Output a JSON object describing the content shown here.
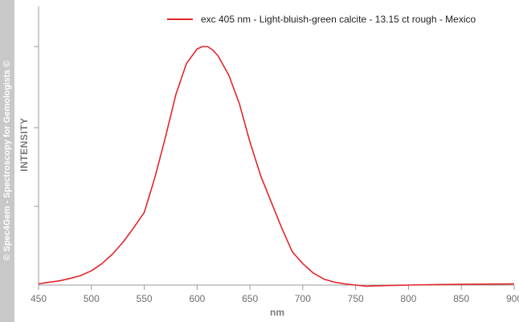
{
  "watermark": "© Spec4Gem - Spectroscopy for Gemologists ©",
  "colors": {
    "series": "#e0262a",
    "axis": "#9a9a9a",
    "band": "#c8c8c8"
  },
  "chart_data": {
    "type": "line",
    "title": "",
    "xlabel": "nm",
    "ylabel": "INTENSITY",
    "xlim": [
      450,
      900
    ],
    "ylim": [
      0,
      1
    ],
    "xticks": [
      450,
      500,
      550,
      600,
      650,
      700,
      750,
      800,
      850,
      900
    ],
    "xtick_labels": [
      "450",
      "500",
      "550",
      "600",
      "650",
      "700",
      "750",
      "800",
      "850",
      "900"
    ],
    "yticks": [
      0.33,
      0.66,
      1.0
    ],
    "grid": false,
    "legend_position": "top-right",
    "series": [
      {
        "name": "exc 405 nm - Light-bluish-green calcite - 13.15 ct rough - Mexico",
        "x": [
          450,
          460,
          470,
          480,
          490,
          500,
          510,
          520,
          530,
          540,
          550,
          560,
          570,
          580,
          590,
          600,
          605,
          610,
          615,
          620,
          630,
          640,
          650,
          660,
          670,
          680,
          690,
          700,
          710,
          720,
          730,
          740,
          750,
          760,
          770,
          780,
          790,
          800,
          825,
          850,
          875,
          900
        ],
        "y": [
          0.005,
          0.012,
          0.018,
          0.028,
          0.04,
          0.06,
          0.09,
          0.13,
          0.18,
          0.24,
          0.305,
          0.45,
          0.62,
          0.8,
          0.93,
          0.99,
          1.0,
          1.0,
          0.985,
          0.96,
          0.88,
          0.76,
          0.6,
          0.46,
          0.35,
          0.24,
          0.14,
          0.09,
          0.05,
          0.025,
          0.012,
          0.005,
          0.0,
          -0.005,
          -0.003,
          -0.002,
          -0.001,
          0.0,
          0.002,
          0.003,
          0.004,
          0.005
        ]
      }
    ]
  }
}
